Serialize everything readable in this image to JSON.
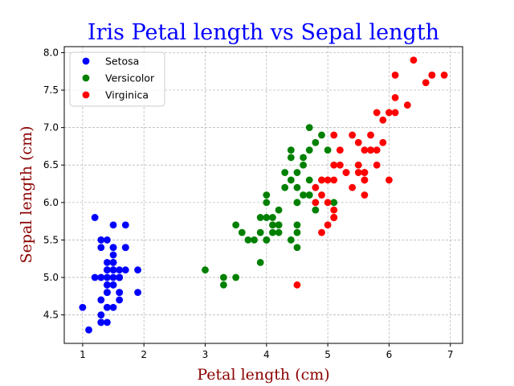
{
  "chart_data": {
    "type": "scatter",
    "title": "Iris Petal length vs Sepal length",
    "xlabel": "Petal length (cm)",
    "ylabel": "Sepal length (cm)",
    "xlim": [
      0.7,
      7.2
    ],
    "ylim": [
      4.12,
      8.08
    ],
    "xticks": [
      "1",
      "2",
      "3",
      "4",
      "5",
      "6",
      "7"
    ],
    "yticks": [
      "4.5",
      "5.0",
      "5.5",
      "6.0",
      "6.5",
      "7.0",
      "7.5",
      "8.0"
    ],
    "grid": true,
    "legend_position": "top-left",
    "colors": {
      "title": "#0000ff",
      "axis_label": "#8b0000"
    },
    "series": [
      {
        "name": "Setosa",
        "color": "#0000ff",
        "points": [
          [
            1.4,
            5.1
          ],
          [
            1.4,
            4.9
          ],
          [
            1.3,
            4.7
          ],
          [
            1.5,
            4.6
          ],
          [
            1.4,
            5.0
          ],
          [
            1.7,
            5.4
          ],
          [
            1.4,
            4.6
          ],
          [
            1.5,
            5.0
          ],
          [
            1.4,
            4.4
          ],
          [
            1.5,
            4.9
          ],
          [
            1.5,
            5.4
          ],
          [
            1.6,
            4.8
          ],
          [
            1.4,
            4.8
          ],
          [
            1.1,
            4.3
          ],
          [
            1.2,
            5.8
          ],
          [
            1.5,
            5.7
          ],
          [
            1.3,
            5.4
          ],
          [
            1.4,
            5.1
          ],
          [
            1.7,
            5.7
          ],
          [
            1.5,
            5.1
          ],
          [
            1.7,
            5.4
          ],
          [
            1.5,
            5.1
          ],
          [
            1.0,
            4.6
          ],
          [
            1.7,
            5.1
          ],
          [
            1.9,
            4.8
          ],
          [
            1.6,
            5.0
          ],
          [
            1.6,
            5.0
          ],
          [
            1.5,
            5.2
          ],
          [
            1.4,
            5.2
          ],
          [
            1.6,
            4.7
          ],
          [
            1.6,
            4.8
          ],
          [
            1.5,
            5.4
          ],
          [
            1.5,
            5.2
          ],
          [
            1.4,
            5.5
          ],
          [
            1.5,
            4.9
          ],
          [
            1.2,
            5.0
          ],
          [
            1.3,
            5.5
          ],
          [
            1.4,
            4.9
          ],
          [
            1.3,
            4.4
          ],
          [
            1.5,
            5.1
          ],
          [
            1.3,
            5.0
          ],
          [
            1.3,
            4.5
          ],
          [
            1.3,
            4.4
          ],
          [
            1.6,
            5.0
          ],
          [
            1.9,
            5.1
          ],
          [
            1.4,
            4.8
          ],
          [
            1.6,
            5.1
          ],
          [
            1.4,
            4.6
          ],
          [
            1.5,
            5.3
          ],
          [
            1.4,
            5.0
          ]
        ]
      },
      {
        "name": "Versicolor",
        "color": "#008000",
        "points": [
          [
            4.7,
            7.0
          ],
          [
            4.5,
            6.4
          ],
          [
            4.9,
            6.9
          ],
          [
            4.0,
            5.5
          ],
          [
            4.6,
            6.5
          ],
          [
            4.5,
            5.7
          ],
          [
            4.7,
            6.3
          ],
          [
            3.3,
            4.9
          ],
          [
            4.6,
            6.6
          ],
          [
            3.9,
            5.2
          ],
          [
            3.5,
            5.0
          ],
          [
            4.2,
            5.9
          ],
          [
            4.0,
            6.0
          ],
          [
            4.7,
            6.1
          ],
          [
            3.6,
            5.6
          ],
          [
            4.4,
            6.7
          ],
          [
            4.5,
            5.6
          ],
          [
            4.1,
            5.8
          ],
          [
            4.5,
            6.2
          ],
          [
            3.9,
            5.6
          ],
          [
            4.8,
            5.9
          ],
          [
            4.0,
            6.1
          ],
          [
            4.9,
            6.3
          ],
          [
            4.7,
            6.1
          ],
          [
            4.3,
            6.4
          ],
          [
            4.4,
            6.6
          ],
          [
            4.8,
            6.8
          ],
          [
            5.0,
            6.7
          ],
          [
            4.5,
            6.0
          ],
          [
            3.5,
            5.7
          ],
          [
            3.8,
            5.5
          ],
          [
            3.7,
            5.5
          ],
          [
            3.9,
            5.8
          ],
          [
            5.1,
            6.0
          ],
          [
            4.5,
            5.4
          ],
          [
            4.5,
            6.0
          ],
          [
            4.7,
            6.7
          ],
          [
            4.4,
            6.3
          ],
          [
            4.1,
            5.6
          ],
          [
            4.0,
            5.5
          ],
          [
            4.4,
            5.5
          ],
          [
            4.6,
            6.1
          ],
          [
            4.0,
            5.8
          ],
          [
            3.3,
            5.0
          ],
          [
            4.2,
            5.6
          ],
          [
            4.2,
            5.7
          ],
          [
            4.2,
            5.7
          ],
          [
            4.3,
            6.2
          ],
          [
            3.0,
            5.1
          ],
          [
            4.1,
            5.7
          ]
        ]
      },
      {
        "name": "Virginica",
        "color": "#ff0000",
        "points": [
          [
            6.0,
            6.3
          ],
          [
            5.1,
            5.8
          ],
          [
            5.9,
            7.1
          ],
          [
            5.6,
            6.3
          ],
          [
            5.8,
            6.5
          ],
          [
            6.6,
            7.6
          ],
          [
            4.5,
            4.9
          ],
          [
            6.3,
            7.3
          ],
          [
            5.8,
            6.7
          ],
          [
            6.1,
            7.2
          ],
          [
            5.1,
            6.5
          ],
          [
            5.3,
            6.4
          ],
          [
            5.5,
            6.8
          ],
          [
            5.0,
            5.7
          ],
          [
            5.1,
            5.8
          ],
          [
            5.3,
            6.4
          ],
          [
            5.5,
            6.5
          ],
          [
            6.7,
            7.7
          ],
          [
            6.9,
            7.7
          ],
          [
            5.0,
            6.0
          ],
          [
            5.7,
            6.9
          ],
          [
            4.9,
            5.6
          ],
          [
            6.7,
            7.7
          ],
          [
            4.9,
            6.3
          ],
          [
            5.7,
            6.7
          ],
          [
            6.0,
            7.2
          ],
          [
            4.8,
            6.2
          ],
          [
            4.9,
            6.1
          ],
          [
            5.6,
            6.4
          ],
          [
            5.8,
            7.2
          ],
          [
            6.1,
            7.4
          ],
          [
            6.4,
            7.9
          ],
          [
            5.6,
            6.4
          ],
          [
            5.1,
            6.3
          ],
          [
            5.6,
            6.1
          ],
          [
            6.1,
            7.7
          ],
          [
            5.6,
            6.3
          ],
          [
            5.5,
            6.4
          ],
          [
            4.8,
            6.0
          ],
          [
            5.4,
            6.9
          ],
          [
            5.6,
            6.7
          ],
          [
            5.1,
            6.9
          ],
          [
            5.1,
            5.8
          ],
          [
            5.9,
            6.8
          ],
          [
            5.7,
            6.7
          ],
          [
            5.2,
            6.7
          ],
          [
            5.0,
            6.3
          ],
          [
            5.2,
            6.5
          ],
          [
            5.4,
            6.2
          ],
          [
            5.1,
            5.9
          ]
        ]
      }
    ]
  }
}
